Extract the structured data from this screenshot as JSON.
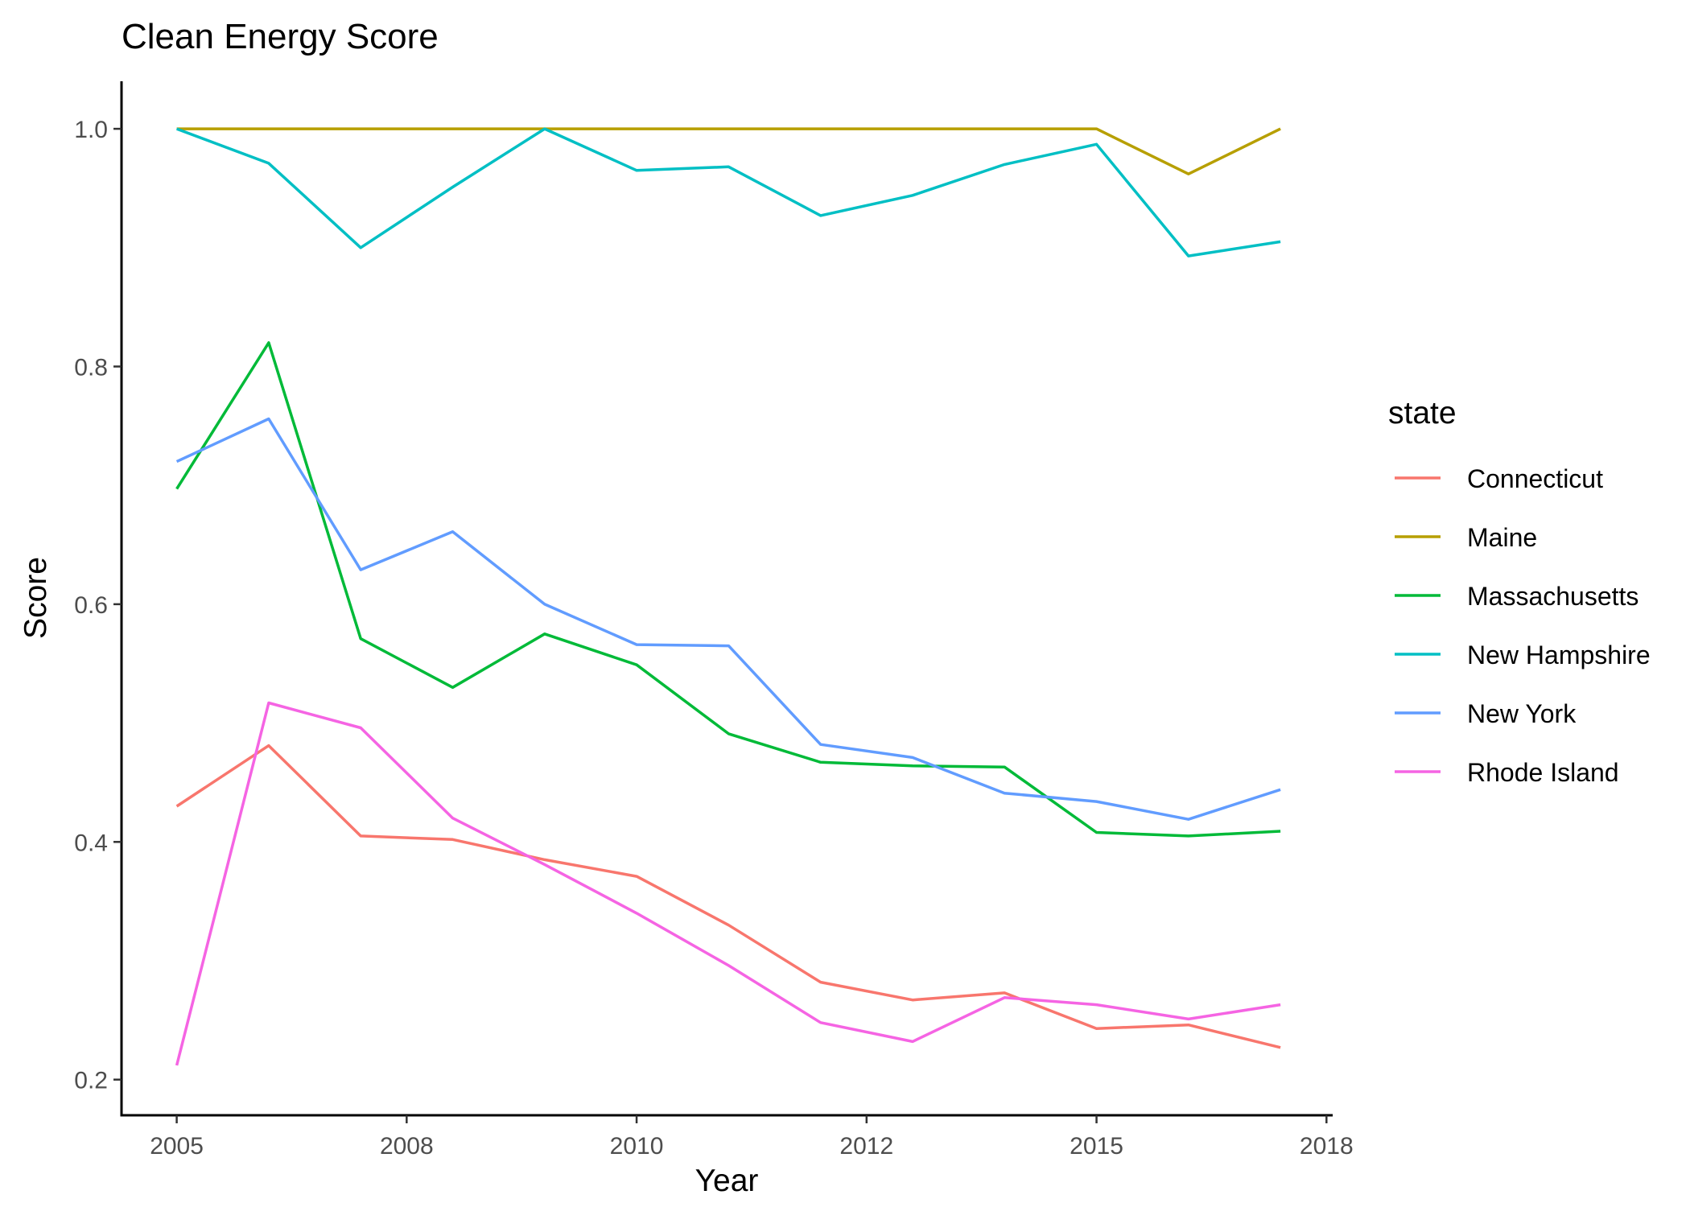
{
  "chart_data": {
    "type": "line",
    "title": "Clean Energy Score",
    "xlabel": "Year",
    "ylabel": "Score",
    "x": [
      2005.0,
      2006.0,
      2007.0,
      2008.0,
      2009.0,
      2010.0,
      2011.0,
      2012.0,
      2013.0,
      2014.0,
      2015.0,
      2016.0,
      2017.0
    ],
    "xlim": [
      2004.4,
      2017.55
    ],
    "ylim": [
      0.17,
      1.04
    ],
    "x_ticks": [
      {
        "value": 2005.0,
        "label": "2005"
      },
      {
        "value": 2007.5,
        "label": "2008"
      },
      {
        "value": 2010.0,
        "label": "2010"
      },
      {
        "value": 2012.5,
        "label": "2012"
      },
      {
        "value": 2015.0,
        "label": "2015"
      },
      {
        "value": 2017.5,
        "label": "2018"
      }
    ],
    "y_ticks": [
      {
        "value": 0.2,
        "label": "0.2"
      },
      {
        "value": 0.4,
        "label": "0.4"
      },
      {
        "value": 0.6,
        "label": "0.6"
      },
      {
        "value": 0.8,
        "label": "0.8"
      },
      {
        "value": 1.0,
        "label": "1.0"
      }
    ],
    "grid": false,
    "legend": {
      "title": "state",
      "position": "right"
    },
    "series": [
      {
        "name": "Connecticut",
        "color": "#F8766D",
        "values": [
          0.43,
          0.481,
          0.405,
          0.402,
          0.385,
          0.371,
          0.33,
          0.282,
          0.267,
          0.273,
          0.243,
          0.246,
          0.227
        ]
      },
      {
        "name": "Maine",
        "color": "#B79F00",
        "values": [
          1.0,
          1.0,
          1.0,
          1.0,
          1.0,
          1.0,
          1.0,
          1.0,
          1.0,
          1.0,
          1.0,
          0.962,
          1.0
        ]
      },
      {
        "name": "Massachusetts",
        "color": "#00BA38",
        "values": [
          0.697,
          0.82,
          0.571,
          0.53,
          0.575,
          0.549,
          0.491,
          0.467,
          0.464,
          0.463,
          0.408,
          0.405,
          0.409
        ]
      },
      {
        "name": "New Hampshire",
        "color": "#00BFC4",
        "values": [
          1.0,
          0.971,
          0.9,
          0.951,
          1.0,
          0.965,
          0.968,
          0.927,
          0.944,
          0.97,
          0.987,
          0.893,
          0.905
        ]
      },
      {
        "name": "New York",
        "color": "#619CFF",
        "values": [
          0.72,
          0.756,
          0.629,
          0.661,
          0.6,
          0.566,
          0.565,
          0.482,
          0.471,
          0.441,
          0.434,
          0.419,
          0.444
        ]
      },
      {
        "name": "Rhode Island",
        "color": "#F564E3",
        "values": [
          0.212,
          0.517,
          0.496,
          0.42,
          0.381,
          0.34,
          0.296,
          0.248,
          0.232,
          0.269,
          0.263,
          0.251,
          0.263
        ]
      }
    ]
  }
}
